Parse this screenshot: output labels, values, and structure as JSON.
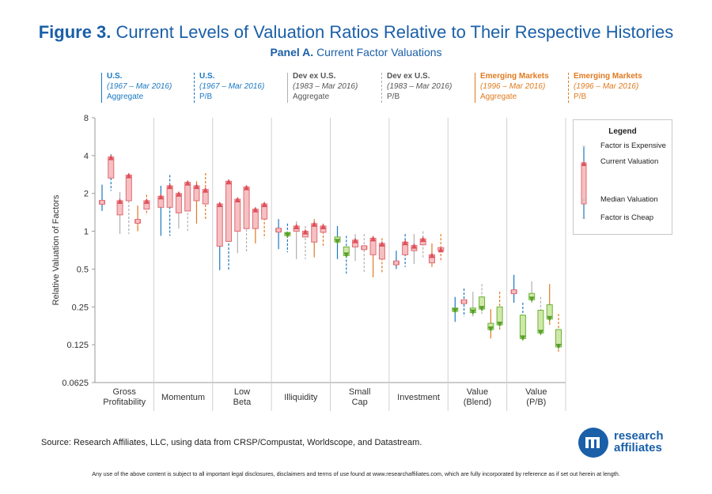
{
  "figure": {
    "label": "Figure 3.",
    "title": "Current Levels of Valuation Ratios Relative to Their Respective Histories",
    "panel_label": "Panel A.",
    "panel_title": "Current Factor Valuations"
  },
  "headers": [
    {
      "line1": "U.S.",
      "line2": "(1967 – Mar 2016)",
      "line3": "Aggregate",
      "color": "#1a78c2"
    },
    {
      "line1": "U.S.",
      "line2": "(1967 – Mar 2016)",
      "line3": "P/B",
      "color": "#1a78c2"
    },
    {
      "line1": "Dev ex U.S.",
      "line2": "(1983 – Mar 2016)",
      "line3": "Aggregate",
      "color": "#555555"
    },
    {
      "line1": "Dev ex U.S.",
      "line2": "(1983 – Mar 2016)",
      "line3": "P/B",
      "color": "#555555"
    },
    {
      "line1": "Emerging Markets",
      "line2": "(1996 – Mar 2016)",
      "line3": "Aggregate",
      "color": "#e07a1f"
    },
    {
      "line1": "Emerging Markets",
      "line2": "(1996 – Mar 2016)",
      "line3": "P/B",
      "color": "#e07a1f"
    }
  ],
  "legend": {
    "title": "Legend",
    "expensive": "Factor is Expensive",
    "current": "Current Valuation",
    "median": "Median Valuation",
    "cheap": "Factor is Cheap"
  },
  "source": "Source: Research Affiliates, LLC, using data from CRSP/Compustat, Worldscope, and Datastream.",
  "disclaimer": "Any use of the above content is subject to all important legal disclosures, disclaimers and terms of use found at www.researchaffiliates.com, which are fully incorporated by reference as if set out herein at length.",
  "logo": {
    "line1": "research",
    "line2": "affiliates"
  },
  "colors": {
    "expensive": "#e7878c",
    "cheap": "#8ccc4a",
    "us": "#1a78c2",
    "dev": "#b0b0b0",
    "em": "#e07a1f"
  },
  "chart_data": {
    "type": "box",
    "ylabel": "Relative Valuation of Factors",
    "yscale": "log2",
    "ylim": [
      0.0625,
      8
    ],
    "yticks": [
      "8",
      "4",
      "2",
      "1",
      "0.5",
      "0.25",
      "0.125",
      "0.0625"
    ],
    "ytick_values": [
      8,
      4,
      2,
      1,
      0.5,
      0.25,
      0.125,
      0.0625
    ],
    "categories": [
      "Gross\nProfitability",
      "Momentum",
      "Low\nBeta",
      "Illiquidity",
      "Small\nCap",
      "Investment",
      "Value\n(Blend)",
      "Value\n(P/B)"
    ],
    "series_names": [
      "U.S. Aggregate",
      "U.S. P/B",
      "Dev ex U.S. Aggregate",
      "Dev ex U.S. P/B",
      "Emerging Markets Aggregate",
      "Emerging Markets P/B"
    ],
    "series": [
      [
        {
          "whisker": [
            1.45,
            2.35
          ],
          "median": 1.7,
          "current": 1.7
        },
        {
          "whisker": [
            2.1,
            4.1
          ],
          "median": 2.65,
          "current": 3.9
        },
        {
          "whisker": [
            0.95,
            2.05
          ],
          "median": 1.35,
          "current": 1.75
        },
        {
          "whisker": [
            0.95,
            2.9
          ],
          "median": 1.75,
          "current": 2.8
        },
        {
          "whisker": [
            1.0,
            1.6
          ],
          "median": 1.2,
          "current": 1.2
        },
        {
          "whisker": [
            1.35,
            1.95
          ],
          "median": 1.5,
          "current": 1.75
        }
      ],
      [
        {
          "whisker": [
            0.92,
            2.3
          ],
          "median": 1.55,
          "current": 1.9
        },
        {
          "whisker": [
            0.92,
            2.8
          ],
          "median": 1.55,
          "current": 2.3
        },
        {
          "whisker": [
            1.05,
            2.0
          ],
          "median": 1.4,
          "current": 2.0
        },
        {
          "whisker": [
            1.0,
            2.5
          ],
          "median": 1.45,
          "current": 2.45
        },
        {
          "whisker": [
            1.15,
            2.5
          ],
          "median": 1.75,
          "current": 2.3
        },
        {
          "whisker": [
            1.25,
            2.9
          ],
          "median": 1.65,
          "current": 2.15
        }
      ],
      [
        {
          "whisker": [
            0.49,
            1.7
          ],
          "median": 0.76,
          "current": 1.65
        },
        {
          "whisker": [
            0.49,
            2.55
          ],
          "median": 0.83,
          "current": 2.5
        },
        {
          "whisker": [
            0.67,
            1.85
          ],
          "median": 1.0,
          "current": 1.8
        },
        {
          "whisker": [
            0.67,
            2.3
          ],
          "median": 1.05,
          "current": 2.25
        },
        {
          "whisker": [
            0.8,
            1.55
          ],
          "median": 1.05,
          "current": 1.5
        },
        {
          "whisker": [
            0.88,
            1.7
          ],
          "median": 1.25,
          "current": 1.65
        }
      ],
      [
        {
          "whisker": [
            0.72,
            1.25
          ],
          "median": 1.02,
          "current": 1.02
        },
        {
          "whisker": [
            0.68,
            1.15
          ],
          "median": 0.95,
          "current": 0.92
        },
        {
          "whisker": [
            0.6,
            1.2
          ],
          "median": 1.0,
          "current": 1.1
        },
        {
          "whisker": [
            0.6,
            1.1
          ],
          "median": 0.9,
          "current": 1.0
        },
        {
          "whisker": [
            0.62,
            1.25
          ],
          "median": 0.82,
          "current": 1.15
        },
        {
          "whisker": [
            0.75,
            1.15
          ],
          "median": 0.98,
          "current": 1.1
        }
      ],
      [
        {
          "whisker": [
            0.6,
            1.1
          ],
          "median": 0.9,
          "current": 0.82
        },
        {
          "whisker": [
            0.46,
            0.92
          ],
          "median": 0.75,
          "current": 0.64
        },
        {
          "whisker": [
            0.58,
            0.95
          ],
          "median": 0.75,
          "current": 0.85
        },
        {
          "whisker": [
            0.46,
            0.95
          ],
          "median": 0.74,
          "current": 0.74
        },
        {
          "whisker": [
            0.43,
            0.92
          ],
          "median": 0.65,
          "current": 0.88
        },
        {
          "whisker": [
            0.47,
            0.88
          ],
          "median": 0.6,
          "current": 0.8
        }
      ],
      [
        {
          "whisker": [
            0.5,
            0.7
          ],
          "median": 0.56,
          "current": 0.56
        },
        {
          "whisker": [
            0.52,
            0.95
          ],
          "median": 0.65,
          "current": 0.82
        },
        {
          "whisker": [
            0.55,
            0.95
          ],
          "median": 0.7,
          "current": 0.77
        },
        {
          "whisker": [
            0.62,
            1.0
          ],
          "median": 0.78,
          "current": 0.87
        },
        {
          "whisker": [
            0.52,
            0.8
          ],
          "median": 0.56,
          "current": 0.65
        },
        {
          "whisker": [
            0.57,
            0.95
          ],
          "median": 0.7,
          "current": 0.72
        }
      ],
      [
        {
          "whisker": [
            0.19,
            0.3
          ],
          "median": 0.245,
          "current": 0.23
        },
        {
          "whisker": [
            0.21,
            0.35
          ],
          "median": 0.275,
          "current": 0.275
        },
        {
          "whisker": [
            0.21,
            0.33
          ],
          "median": 0.245,
          "current": 0.225
        },
        {
          "whisker": [
            0.22,
            0.38
          ],
          "median": 0.3,
          "current": 0.24
        },
        {
          "whisker": [
            0.14,
            0.24
          ],
          "median": 0.185,
          "current": 0.165
        },
        {
          "whisker": [
            0.16,
            0.33
          ],
          "median": 0.25,
          "current": 0.18
        }
      ],
      [
        {
          "whisker": [
            0.27,
            0.45
          ],
          "median": 0.33,
          "current": 0.33
        },
        {
          "whisker": [
            0.14,
            0.27
          ],
          "median": 0.215,
          "current": 0.14
        },
        {
          "whisker": [
            0.27,
            0.4
          ],
          "median": 0.32,
          "current": 0.285
        },
        {
          "whisker": [
            0.15,
            0.3
          ],
          "median": 0.235,
          "current": 0.155
        },
        {
          "whisker": [
            0.18,
            0.38
          ],
          "median": 0.26,
          "current": 0.2
        },
        {
          "whisker": [
            0.11,
            0.22
          ],
          "median": 0.165,
          "current": 0.12
        }
      ]
    ]
  }
}
